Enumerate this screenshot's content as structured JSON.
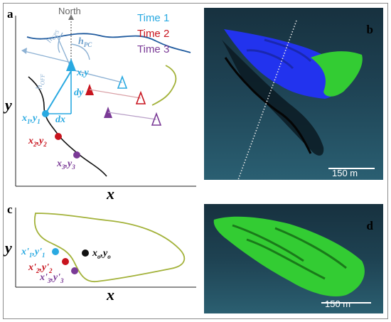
{
  "panels": {
    "a": {
      "letter": "a"
    },
    "b": {
      "letter": "b",
      "scale_text": "150 m"
    },
    "c": {
      "letter": "c"
    },
    "d": {
      "letter": "d",
      "scale_text": "150 m"
    }
  },
  "panel_a": {
    "north": "North",
    "h_gps": "h",
    "h_gps_sub": "GPS",
    "h_pc": "h",
    "h_pc_sub": "PC",
    "h_off": "h",
    "h_off_sub": "OFF",
    "xy": "x,y",
    "dy": "dy",
    "dx": "dx",
    "p1": {
      "x": "x",
      "s1": "1",
      "comma": ",y",
      "s2": "1"
    },
    "p2": {
      "x": "x",
      "s1": "2",
      "comma": ",y",
      "s2": "2"
    },
    "p3": {
      "x": "x",
      "s1": "3",
      "comma": ",y",
      "s2": "3"
    },
    "axis_x": "x",
    "axis_y": "y",
    "legend": [
      "Time 1",
      "Time 2",
      "Time 3"
    ]
  },
  "panel_c": {
    "p1": {
      "x": "x'",
      "s1": "1",
      "comma": ",y'",
      "s2": "1"
    },
    "p2": {
      "x": "x'",
      "s1": "2",
      "comma": ",y'",
      "s2": "2"
    },
    "p3": {
      "x": "x'",
      "s1": "3",
      "comma": ",y'",
      "s2": "3"
    },
    "center": {
      "x": "x",
      "s1": "o",
      "comma": ",y",
      "s2": "o"
    },
    "axis_x": "x",
    "axis_y": "y"
  },
  "colors": {
    "time1": "#29a9e1",
    "time2": "#c8141e",
    "time3": "#7a3a96",
    "river": "#1f5a9e",
    "hillside": "#a3b23a",
    "cloud_blue": "#2233ee",
    "cloud_green": "#33cc33"
  }
}
